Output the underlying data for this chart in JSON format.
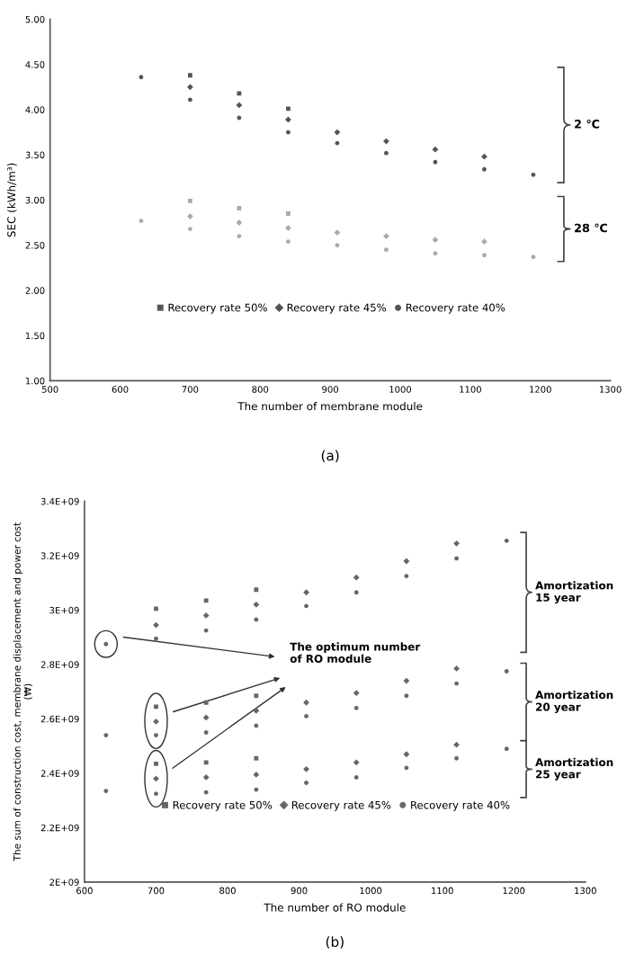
{
  "chart_data": [
    {
      "type": "scatter",
      "xlabel": "The number of membrane module",
      "ylabel": "SEC (kWh/m³)",
      "x": [
        630,
        700,
        770,
        840,
        910,
        980,
        1050,
        1120,
        1190
      ],
      "series": [
        {
          "name": "Recovery rate 50%",
          "marker": "square",
          "color": "#555555",
          "values": [
            null,
            4.38,
            4.18,
            4.01,
            null,
            null,
            null,
            null,
            null
          ]
        },
        {
          "name": "Recovery rate 45%",
          "marker": "diamond",
          "color": "#555555",
          "values": [
            null,
            4.25,
            4.05,
            3.89,
            3.75,
            3.65,
            3.56,
            3.48,
            null
          ]
        },
        {
          "name": "Recovery rate 40%",
          "marker": "circle",
          "color": "#555555",
          "values": [
            4.36,
            4.11,
            3.91,
            3.75,
            3.63,
            3.52,
            3.42,
            3.34,
            3.28
          ]
        },
        {
          "marker": "square",
          "color": "#aaaaaa",
          "values": [
            null,
            2.99,
            2.91,
            2.85,
            null,
            null,
            null,
            null,
            null
          ]
        },
        {
          "marker": "diamond",
          "color": "#aaaaaa",
          "values": [
            null,
            2.82,
            2.75,
            2.69,
            2.64,
            2.6,
            2.56,
            2.54,
            null
          ]
        },
        {
          "marker": "circle",
          "color": "#aaaaaa",
          "values": [
            2.77,
            2.68,
            2.6,
            2.54,
            2.5,
            2.45,
            2.41,
            2.39,
            2.37
          ]
        }
      ],
      "xlim": [
        500,
        1300
      ],
      "xticks": [
        500,
        600,
        700,
        800,
        900,
        1000,
        1100,
        1200,
        1300
      ],
      "ylim": [
        1,
        5
      ],
      "yticks": [
        {
          "value": 1,
          "label": "1.00"
        },
        {
          "value": 1.5,
          "label": "1.50"
        },
        {
          "value": 2,
          "label": "2.00"
        },
        {
          "value": 2.5,
          "label": "2.50"
        },
        {
          "value": 3,
          "label": "3.00"
        },
        {
          "value": 3.5,
          "label": "3.50"
        },
        {
          "value": 4,
          "label": "4.00"
        },
        {
          "value": 4.5,
          "label": "4.50"
        },
        {
          "value": 5,
          "label": "5.00"
        }
      ],
      "legend": "bottom",
      "annotations": [
        "2 ℃",
        "28 ℃",
        "(a)"
      ]
    },
    {
      "type": "scatter",
      "xlabel": "The number of RO module",
      "ylabel": "The sum of construction cost, membrane displacement and power cost\n(₩)",
      "x": [
        630,
        700,
        770,
        840,
        910,
        980,
        1050,
        1120,
        1190
      ],
      "series": [
        {
          "name": "Recovery rate 50%",
          "marker": "square",
          "color": "#666666",
          "values": [
            null,
            3005000000,
            3035000000,
            3075000000,
            null,
            null,
            null,
            null,
            null
          ]
        },
        {
          "name": "Recovery rate 45%",
          "marker": "diamond",
          "color": "#666666",
          "values": [
            null,
            2945000000,
            2980000000,
            3020000000,
            3065000000,
            3120000000,
            3180000000,
            3245000000,
            null
          ]
        },
        {
          "name": "Recovery rate 40%",
          "marker": "circle",
          "color": "#666666",
          "values": [
            2875000000,
            2895000000,
            2925000000,
            2965000000,
            3015000000,
            3065000000,
            3125000000,
            3190000000,
            3255000000
          ]
        },
        {
          "marker": "square",
          "color": "#666666",
          "values": [
            null,
            2645000000,
            2660000000,
            2685000000,
            null,
            null,
            null,
            null,
            null
          ]
        },
        {
          "marker": "diamond",
          "color": "#666666",
          "values": [
            null,
            2590000000,
            2605000000,
            2630000000,
            2660000000,
            2695000000,
            2740000000,
            2785000000,
            null
          ]
        },
        {
          "marker": "circle",
          "color": "#666666",
          "values": [
            2540000000,
            2540000000,
            2550000000,
            2575000000,
            2610000000,
            2640000000,
            2685000000,
            2730000000,
            2775000000
          ]
        },
        {
          "marker": "square",
          "color": "#666666",
          "values": [
            null,
            2435000000,
            2440000000,
            2455000000,
            null,
            null,
            null,
            null,
            null
          ]
        },
        {
          "marker": "diamond",
          "color": "#666666",
          "values": [
            null,
            2380000000,
            2385000000,
            2395000000,
            2415000000,
            2440000000,
            2470000000,
            2505000000,
            null
          ]
        },
        {
          "marker": "circle",
          "color": "#666666",
          "values": [
            2335000000,
            2325000000,
            2330000000,
            2340000000,
            2365000000,
            2385000000,
            2420000000,
            2455000000,
            2490000000
          ]
        }
      ],
      "xlim": [
        600,
        1300
      ],
      "xticks": [
        600,
        700,
        800,
        900,
        1000,
        1100,
        1200,
        1300
      ],
      "ylim": [
        2000000000,
        3400000000
      ],
      "yticks": [
        {
          "value": 2000000000,
          "label": "2E+09"
        },
        {
          "value": 2200000000,
          "label": "2.2E+09"
        },
        {
          "value": 2400000000,
          "label": "2.4E+09"
        },
        {
          "value": 2600000000,
          "label": "2.6E+09"
        },
        {
          "value": 2800000000,
          "label": "2.8E+09"
        },
        {
          "value": 3000000000,
          "label": "3E+09"
        },
        {
          "value": 3200000000,
          "label": "3.2E+09"
        },
        {
          "value": 3400000000,
          "label": "3.4E+09"
        }
      ],
      "legend": "bottom",
      "annotations": [
        "Amortization\n15 year",
        "Amortization\n20 year",
        "Amortization\n25 year",
        "The optimum number\nof RO module",
        "(b)"
      ]
    }
  ]
}
